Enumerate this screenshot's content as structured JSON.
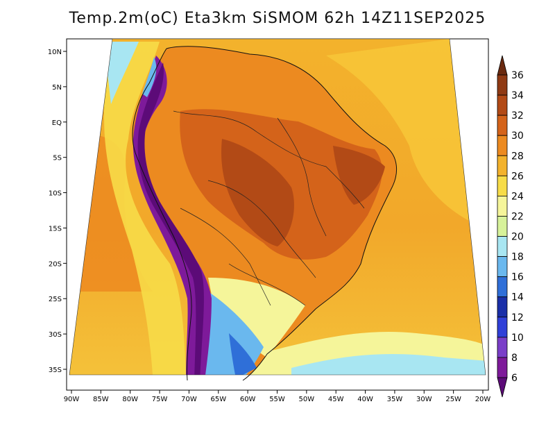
{
  "title": "Temp.2m(oC) Eta3km SiSMOM 62h 14Z11SEP2025",
  "map": {
    "lon_labels": [
      "90W",
      "85W",
      "80W",
      "75W",
      "70W",
      "65W",
      "60W",
      "55W",
      "50W",
      "45W",
      "40W",
      "35W",
      "30W",
      "25W",
      "20W"
    ],
    "lat_labels": [
      "10N",
      "5N",
      "EQ",
      "5S",
      "10S",
      "15S",
      "20S",
      "25S",
      "30S",
      "35S"
    ]
  },
  "colorbar": {
    "labels": [
      "36",
      "34",
      "32",
      "30",
      "28",
      "26",
      "24",
      "22",
      "20",
      "18",
      "16",
      "14",
      "12",
      "10",
      "8",
      "6"
    ],
    "colors": [
      "#6a2a10",
      "#8f3a14",
      "#b24a16",
      "#d4631a",
      "#ec8a20",
      "#f3b22c",
      "#f7dc48",
      "#f5f59a",
      "#d7f29a",
      "#a8e6f2",
      "#6ab8ee",
      "#2f6fd8",
      "#1a2fa8",
      "#3040d8",
      "#7a3ec8",
      "#7e1a9a",
      "#5c0b78"
    ]
  }
}
